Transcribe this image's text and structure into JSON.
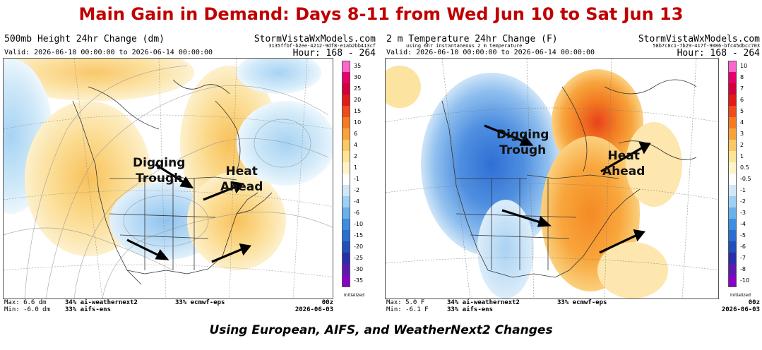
{
  "title": "Main Gain in Demand: Days 8-11 from Wed Jun 10 to Sat Jun 13",
  "caption": "Using European, AIFS, and WeatherNext2 Changes",
  "panels": [
    {
      "title": "500mb Height 24hr Change (dm)",
      "subtitle": "",
      "brand": "StormVistaWxModels.com",
      "hash": "3135ffbf-b2ee-4212-9df8-e1ab2bb413cf",
      "valid": "Valid: 2026-06-10 00:00:00 to 2026-06-14 00:00:00",
      "hour": "Hour: 168 - 264",
      "stats_max": "Max: 6.6 dm",
      "stats_min": "Min: -6.0 dm",
      "models_a": "34% ai-weathernext2",
      "models_b": "33% aifs-ens",
      "models_c": "33% ecmwf-eps",
      "run_label": "00z",
      "run_date": "2026-06-03",
      "initialized": "Initialized",
      "colorbar": {
        "labels": [
          "35",
          "30",
          "25",
          "20",
          "15",
          "10",
          "6",
          "4",
          "2",
          "1",
          "-1",
          "-2",
          "-4",
          "-6",
          "-10",
          "-15",
          "-20",
          "-25",
          "-30",
          "-35"
        ],
        "colors": [
          "#ff66cc",
          "#e8006a",
          "#d4003a",
          "#e31a1c",
          "#f14a1d",
          "#f57b22",
          "#f8a23c",
          "#fac865",
          "#fde496",
          "#fff3c8",
          "#ffffff",
          "#cfe8f8",
          "#9fd0f3",
          "#6ab1ea",
          "#3c8ee0",
          "#2a6fd0",
          "#2050b8",
          "#2a2ea8",
          "#5a1ab0",
          "#8a00c8"
        ]
      },
      "annotations": [
        {
          "lines": [
            "Digging",
            "Trough"
          ]
        },
        {
          "lines": [
            "Heat",
            "Ahead"
          ]
        }
      ]
    },
    {
      "title": "2 m Temperature 24hr Change (F)",
      "subtitle": "using 6hr instantaneous 2 m temperature",
      "brand": "StormVistaWxModels.com",
      "hash": "58b7c8c1-7b29-417f-9086-bfc45dbcc703",
      "valid": "Valid: 2026-06-10 00:00:00 to 2026-06-14 00:00:00",
      "hour": "Hour: 168 - 264",
      "stats_max": "Max: 5.0 F",
      "stats_min": "Min: -6.1 F",
      "models_a": "34% ai-weathernext2",
      "models_b": "33% aifs-ens",
      "models_c": "33% ecmwf-eps",
      "run_label": "00z",
      "run_date": "2026-06-03",
      "initialized": "Initialized",
      "colorbar": {
        "labels": [
          "10",
          "8",
          "7",
          "6",
          "5",
          "4",
          "3",
          "2",
          "1",
          "0.5",
          "-0.5",
          "-1",
          "-2",
          "-3",
          "-4",
          "-5",
          "-6",
          "-7",
          "-8",
          "-10"
        ],
        "colors": [
          "#ff66cc",
          "#e8006a",
          "#d4003a",
          "#e31a1c",
          "#f14a1d",
          "#f57b22",
          "#f8a23c",
          "#fac865",
          "#fde496",
          "#fff3c8",
          "#ffffff",
          "#cfe8f8",
          "#9fd0f3",
          "#6ab1ea",
          "#3c8ee0",
          "#2a6fd0",
          "#2050b8",
          "#2a2ea8",
          "#5a1ab0",
          "#8a00c8"
        ]
      },
      "annotations": [
        {
          "lines": [
            "Digging",
            "Trough"
          ]
        },
        {
          "lines": [
            "Heat",
            "Ahead"
          ]
        }
      ]
    }
  ]
}
